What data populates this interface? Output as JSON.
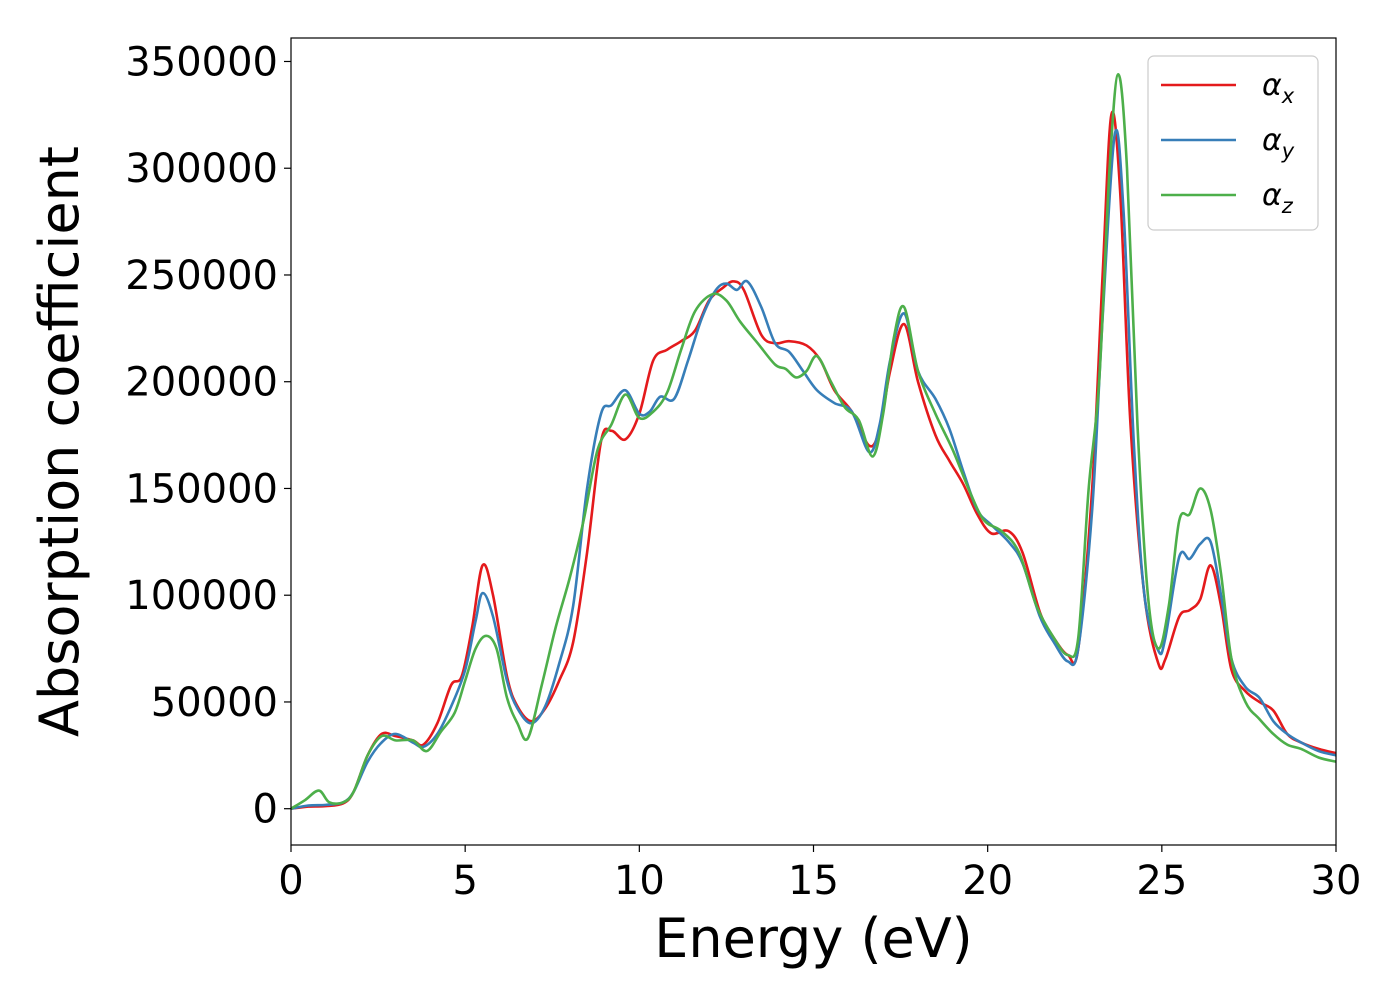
{
  "chart_data": {
    "type": "line",
    "title": "",
    "xlabel": "Energy (eV)",
    "ylabel": "Absorption coefficient",
    "xlim": [
      0,
      30
    ],
    "ylim": [
      -17000,
      361000
    ],
    "xticks": [
      0,
      5,
      10,
      15,
      20,
      25,
      30
    ],
    "yticks": [
      0,
      50000,
      100000,
      150000,
      200000,
      250000,
      300000,
      350000
    ],
    "grid": false,
    "legend_position": "top-right",
    "series": [
      {
        "name": "α",
        "subscript": "x",
        "color": "#e41a1c",
        "points": [
          [
            0,
            0
          ],
          [
            0.5,
            1000
          ],
          [
            1.0,
            1200
          ],
          [
            1.5,
            2500
          ],
          [
            1.8,
            8000
          ],
          [
            2.2,
            25000
          ],
          [
            2.6,
            35000
          ],
          [
            3.0,
            34000
          ],
          [
            3.5,
            32000
          ],
          [
            3.8,
            30000
          ],
          [
            4.2,
            40000
          ],
          [
            4.6,
            58000
          ],
          [
            4.9,
            62000
          ],
          [
            5.2,
            85000
          ],
          [
            5.5,
            114000
          ],
          [
            5.8,
            100000
          ],
          [
            6.2,
            62000
          ],
          [
            6.5,
            48000
          ],
          [
            6.9,
            41000
          ],
          [
            7.3,
            47000
          ],
          [
            7.7,
            60000
          ],
          [
            8.1,
            78000
          ],
          [
            8.5,
            120000
          ],
          [
            8.9,
            172000
          ],
          [
            9.2,
            177000
          ],
          [
            9.6,
            173000
          ],
          [
            10.0,
            185000
          ],
          [
            10.4,
            210000
          ],
          [
            10.8,
            215000
          ],
          [
            11.2,
            219000
          ],
          [
            11.6,
            224000
          ],
          [
            12.0,
            238000
          ],
          [
            12.4,
            244000
          ],
          [
            12.7,
            247000
          ],
          [
            13.0,
            243000
          ],
          [
            13.5,
            222000
          ],
          [
            13.9,
            218000
          ],
          [
            14.3,
            219000
          ],
          [
            14.8,
            217000
          ],
          [
            15.2,
            210000
          ],
          [
            15.6,
            196000
          ],
          [
            16.1,
            186000
          ],
          [
            16.6,
            170000
          ],
          [
            16.9,
            178000
          ],
          [
            17.2,
            205000
          ],
          [
            17.6,
            227000
          ],
          [
            18.0,
            200000
          ],
          [
            18.5,
            175000
          ],
          [
            18.9,
            163000
          ],
          [
            19.3,
            152000
          ],
          [
            19.7,
            138000
          ],
          [
            20.1,
            129000
          ],
          [
            20.6,
            130000
          ],
          [
            21.0,
            120000
          ],
          [
            21.5,
            92000
          ],
          [
            21.9,
            80000
          ],
          [
            22.3,
            72000
          ],
          [
            22.6,
            75000
          ],
          [
            23.0,
            150000
          ],
          [
            23.3,
            250000
          ],
          [
            23.55,
            325000
          ],
          [
            23.8,
            290000
          ],
          [
            24.1,
            180000
          ],
          [
            24.5,
            100000
          ],
          [
            24.9,
            68000
          ],
          [
            25.1,
            70000
          ],
          [
            25.5,
            90000
          ],
          [
            25.8,
            93000
          ],
          [
            26.1,
            98000
          ],
          [
            26.4,
            114000
          ],
          [
            26.7,
            95000
          ],
          [
            27.0,
            65000
          ],
          [
            27.4,
            55000
          ],
          [
            27.8,
            50000
          ],
          [
            28.2,
            46000
          ],
          [
            28.6,
            35000
          ],
          [
            29.0,
            31000
          ],
          [
            29.5,
            28000
          ],
          [
            30.0,
            26000
          ]
        ]
      },
      {
        "name": "α",
        "subscript": "y",
        "color": "#377eb8",
        "points": [
          [
            0,
            0
          ],
          [
            0.5,
            1500
          ],
          [
            1.0,
            1800
          ],
          [
            1.5,
            3000
          ],
          [
            1.8,
            8000
          ],
          [
            2.2,
            22000
          ],
          [
            2.6,
            31000
          ],
          [
            3.0,
            35000
          ],
          [
            3.5,
            31000
          ],
          [
            3.8,
            29000
          ],
          [
            4.2,
            35000
          ],
          [
            4.6,
            48000
          ],
          [
            5.0,
            65000
          ],
          [
            5.3,
            88000
          ],
          [
            5.5,
            101000
          ],
          [
            5.8,
            90000
          ],
          [
            6.2,
            60000
          ],
          [
            6.5,
            47000
          ],
          [
            6.9,
            40000
          ],
          [
            7.3,
            48000
          ],
          [
            7.7,
            68000
          ],
          [
            8.1,
            95000
          ],
          [
            8.5,
            150000
          ],
          [
            8.9,
            185000
          ],
          [
            9.2,
            189000
          ],
          [
            9.6,
            196000
          ],
          [
            10.0,
            185000
          ],
          [
            10.3,
            186000
          ],
          [
            10.6,
            193000
          ],
          [
            11.0,
            192000
          ],
          [
            11.4,
            210000
          ],
          [
            11.8,
            230000
          ],
          [
            12.2,
            243000
          ],
          [
            12.5,
            246000
          ],
          [
            12.8,
            243000
          ],
          [
            13.1,
            247000
          ],
          [
            13.5,
            235000
          ],
          [
            13.9,
            218000
          ],
          [
            14.3,
            214000
          ],
          [
            14.7,
            205000
          ],
          [
            15.1,
            196000
          ],
          [
            15.6,
            190000
          ],
          [
            16.1,
            186000
          ],
          [
            16.6,
            167000
          ],
          [
            16.9,
            180000
          ],
          [
            17.2,
            210000
          ],
          [
            17.6,
            232000
          ],
          [
            18.0,
            205000
          ],
          [
            18.5,
            192000
          ],
          [
            18.9,
            178000
          ],
          [
            19.3,
            158000
          ],
          [
            19.7,
            140000
          ],
          [
            20.1,
            133000
          ],
          [
            20.6,
            125000
          ],
          [
            21.0,
            115000
          ],
          [
            21.5,
            90000
          ],
          [
            21.9,
            78000
          ],
          [
            22.3,
            69000
          ],
          [
            22.6,
            75000
          ],
          [
            23.0,
            140000
          ],
          [
            23.3,
            230000
          ],
          [
            23.65,
            316000
          ],
          [
            23.9,
            280000
          ],
          [
            24.2,
            170000
          ],
          [
            24.5,
            100000
          ],
          [
            24.9,
            74000
          ],
          [
            25.1,
            80000
          ],
          [
            25.5,
            118000
          ],
          [
            25.8,
            117000
          ],
          [
            26.1,
            124000
          ],
          [
            26.4,
            125000
          ],
          [
            26.7,
            100000
          ],
          [
            27.0,
            70000
          ],
          [
            27.4,
            57000
          ],
          [
            27.8,
            52000
          ],
          [
            28.2,
            41000
          ],
          [
            28.6,
            35000
          ],
          [
            29.0,
            31000
          ],
          [
            29.5,
            27000
          ],
          [
            30.0,
            25000
          ]
        ]
      },
      {
        "name": "α",
        "subscript": "z",
        "color": "#4daf4a",
        "points": [
          [
            0,
            0
          ],
          [
            0.4,
            4000
          ],
          [
            0.8,
            8500
          ],
          [
            1.1,
            3000
          ],
          [
            1.5,
            3000
          ],
          [
            1.8,
            8000
          ],
          [
            2.2,
            25000
          ],
          [
            2.6,
            34000
          ],
          [
            3.0,
            32000
          ],
          [
            3.5,
            32000
          ],
          [
            3.9,
            27000
          ],
          [
            4.3,
            36000
          ],
          [
            4.7,
            45000
          ],
          [
            5.0,
            60000
          ],
          [
            5.3,
            75000
          ],
          [
            5.6,
            81000
          ],
          [
            5.9,
            75000
          ],
          [
            6.2,
            52000
          ],
          [
            6.5,
            40000
          ],
          [
            6.8,
            33000
          ],
          [
            7.2,
            58000
          ],
          [
            7.6,
            85000
          ],
          [
            8.0,
            108000
          ],
          [
            8.4,
            135000
          ],
          [
            8.8,
            168000
          ],
          [
            9.2,
            180000
          ],
          [
            9.6,
            194000
          ],
          [
            10.0,
            183000
          ],
          [
            10.4,
            186000
          ],
          [
            10.8,
            195000
          ],
          [
            11.2,
            215000
          ],
          [
            11.6,
            233000
          ],
          [
            12.1,
            241000
          ],
          [
            12.5,
            238000
          ],
          [
            12.9,
            228000
          ],
          [
            13.4,
            218000
          ],
          [
            13.9,
            208000
          ],
          [
            14.2,
            206000
          ],
          [
            14.5,
            202000
          ],
          [
            14.8,
            205000
          ],
          [
            15.1,
            212000
          ],
          [
            15.5,
            200000
          ],
          [
            15.9,
            188000
          ],
          [
            16.3,
            182000
          ],
          [
            16.7,
            165000
          ],
          [
            17.0,
            185000
          ],
          [
            17.3,
            220000
          ],
          [
            17.6,
            235000
          ],
          [
            18.0,
            205000
          ],
          [
            18.5,
            185000
          ],
          [
            19.0,
            168000
          ],
          [
            19.5,
            148000
          ],
          [
            19.9,
            135000
          ],
          [
            20.4,
            130000
          ],
          [
            20.9,
            120000
          ],
          [
            21.4,
            95000
          ],
          [
            21.9,
            80000
          ],
          [
            22.3,
            72000
          ],
          [
            22.6,
            80000
          ],
          [
            22.9,
            150000
          ],
          [
            23.2,
            200000
          ],
          [
            23.5,
            300000
          ],
          [
            23.75,
            344000
          ],
          [
            24.0,
            300000
          ],
          [
            24.3,
            180000
          ],
          [
            24.6,
            100000
          ],
          [
            24.9,
            75000
          ],
          [
            25.2,
            95000
          ],
          [
            25.5,
            135000
          ],
          [
            25.8,
            138000
          ],
          [
            26.1,
            150000
          ],
          [
            26.4,
            140000
          ],
          [
            26.7,
            110000
          ],
          [
            27.0,
            70000
          ],
          [
            27.4,
            50000
          ],
          [
            27.8,
            42000
          ],
          [
            28.2,
            35000
          ],
          [
            28.6,
            30000
          ],
          [
            29.0,
            28000
          ],
          [
            29.5,
            24000
          ],
          [
            30.0,
            22000
          ]
        ]
      }
    ]
  }
}
